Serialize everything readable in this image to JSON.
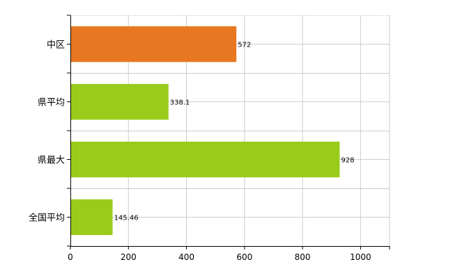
{
  "chart_data": {
    "type": "bar",
    "orientation": "horizontal",
    "categories": [
      "中区",
      "県平均",
      "県最大",
      "全国平均"
    ],
    "values": [
      572,
      338.1,
      928,
      145.46
    ],
    "value_labels": [
      "572",
      "338.1",
      "928",
      "145.46"
    ],
    "bar_colors": [
      "#e87722",
      "#99cc1a",
      "#99cc1a",
      "#99cc1a"
    ],
    "xlim": [
      0,
      1100
    ],
    "xticks": [
      0,
      200,
      400,
      600,
      800,
      1000
    ],
    "xtick_labels": [
      "0",
      "200",
      "400",
      "600",
      "800",
      "1000"
    ],
    "grid": true,
    "gridline_color": "#cccccc"
  }
}
